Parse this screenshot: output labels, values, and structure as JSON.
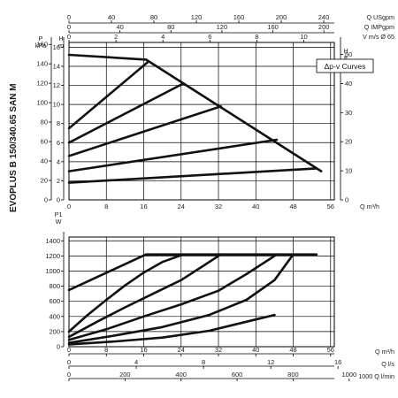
{
  "model_label": "EVOPLUS B 150/340.65 SAN M",
  "legend": "Δp-v Curves",
  "top_axes": [
    {
      "unit": "Q USgpm",
      "min": 0,
      "max": 250,
      "ticks": [
        "0",
        "40",
        "80",
        "120",
        "160",
        "200",
        "240"
      ],
      "tick_values": [
        0,
        40,
        80,
        120,
        160,
        200,
        240
      ]
    },
    {
      "unit": "Q IMPgpm",
      "min": 0,
      "max": 208.2,
      "ticks": [
        "0",
        "40",
        "80",
        "120",
        "160",
        "200"
      ],
      "tick_values": [
        0,
        40,
        80,
        120,
        160,
        200
      ]
    },
    {
      "unit": "V m/s Ø 65",
      "min": 0,
      "max": 11.3,
      "ticks": [
        "0",
        "2",
        "4",
        "6",
        "8",
        "10"
      ],
      "tick_values": [
        0,
        2,
        4,
        6,
        8,
        10
      ]
    }
  ],
  "bottom_axes": [
    {
      "unit": "Q m³/h",
      "min": 0,
      "max": 56.8,
      "ticks": [
        "0",
        "8",
        "16",
        "24",
        "32",
        "40",
        "48",
        "56"
      ],
      "tick_values": [
        0,
        8,
        16,
        24,
        32,
        40,
        48,
        56
      ]
    },
    {
      "unit": "Q l/s",
      "min": 0,
      "max": 15.78,
      "ticks": [
        "0",
        "4",
        "8",
        "12",
        "16"
      ],
      "tick_values": [
        0,
        4,
        8,
        12,
        16
      ]
    },
    {
      "unit": "1000 Q l/min",
      "min": 0,
      "max": 0.947,
      "ticks": [
        "0",
        "200",
        "400",
        "600",
        "800",
        "1000"
      ],
      "tick_values": [
        0,
        0.2,
        0.4,
        0.6,
        0.8,
        1.0
      ]
    }
  ],
  "chart_data": [
    {
      "type": "line",
      "title": "",
      "x_axis": {
        "label": "Q m³/h",
        "range": [
          0,
          56.8
        ],
        "ticks": [
          "0",
          "8",
          "16",
          "24",
          "32",
          "40",
          "48",
          "56"
        ],
        "tick_values": [
          0,
          8,
          16,
          24,
          32,
          40,
          48,
          56
        ]
      },
      "left_axes": [
        {
          "label": "P kPa",
          "range": [
            0,
            162
          ],
          "ticks": [
            "0",
            "20",
            "40",
            "60",
            "80",
            "100",
            "120",
            "140",
            "160"
          ],
          "tick_values": [
            0,
            20,
            40,
            60,
            80,
            100,
            120,
            140,
            160
          ]
        },
        {
          "label": "H m",
          "range": [
            0,
            16.5
          ],
          "ticks": [
            "0",
            "2",
            "4",
            "6",
            "8",
            "10",
            "12",
            "14",
            "16"
          ],
          "tick_values": [
            0,
            2,
            4,
            6,
            8,
            10,
            12,
            14,
            16
          ]
        }
      ],
      "right_axis": {
        "label": "H ft",
        "range": [
          0,
          54.1
        ],
        "ticks": [
          "0",
          "10",
          "20",
          "30",
          "40",
          "50"
        ],
        "tick_values": [
          0,
          10,
          20,
          30,
          40,
          50
        ]
      },
      "ylim": [
        0,
        16.5
      ],
      "grid": true,
      "legend_position": "top-right",
      "series": [
        {
          "x": [
            0,
            16.5,
            54
          ],
          "y": [
            15.2,
            14.7,
            3.0
          ]
        },
        {
          "x": [
            0,
            17
          ],
          "y": [
            7.5,
            14.5
          ]
        },
        {
          "x": [
            0,
            24.5
          ],
          "y": [
            6.0,
            12.2
          ]
        },
        {
          "x": [
            0,
            32.5
          ],
          "y": [
            4.6,
            9.8
          ]
        },
        {
          "x": [
            0,
            44.5
          ],
          "y": [
            3.0,
            6.3
          ]
        },
        {
          "x": [
            0,
            53
          ],
          "y": [
            1.8,
            3.3
          ]
        }
      ]
    },
    {
      "type": "line",
      "title": "",
      "x_axis": {
        "label": "Q m³/h",
        "range": [
          0,
          56.8
        ],
        "ticks": [
          "0",
          "8",
          "16",
          "24",
          "32",
          "40",
          "48",
          "56"
        ],
        "tick_values": [
          0,
          8,
          16,
          24,
          32,
          40,
          48,
          56
        ]
      },
      "y_axis": {
        "label": "P1 W",
        "range": [
          0,
          1450
        ],
        "ticks": [
          "0",
          "200",
          "400",
          "600",
          "800",
          "1000",
          "1200",
          "1400"
        ],
        "tick_values": [
          0,
          200,
          400,
          600,
          800,
          1000,
          1200,
          1400
        ]
      },
      "ylim": [
        0,
        1450
      ],
      "grid": true,
      "series": [
        {
          "x": [
            0,
            16.5,
            53
          ],
          "y": [
            750,
            1220,
            1220
          ]
        },
        {
          "x": [
            0,
            4,
            8,
            12,
            16,
            20,
            24.5
          ],
          "y": [
            200,
            420,
            620,
            810,
            980,
            1120,
            1220
          ]
        },
        {
          "x": [
            0,
            6,
            12,
            18,
            24,
            28,
            32.5
          ],
          "y": [
            130,
            330,
            520,
            700,
            880,
            1040,
            1220
          ]
        },
        {
          "x": [
            0,
            8,
            16,
            24,
            32,
            38,
            44.5
          ],
          "y": [
            90,
            230,
            400,
            560,
            740,
            960,
            1220
          ]
        },
        {
          "x": [
            0,
            10,
            20,
            30,
            38,
            44,
            48
          ],
          "y": [
            50,
            150,
            260,
            420,
            620,
            880,
            1220
          ]
        },
        {
          "x": [
            0,
            10,
            20,
            30,
            36,
            40,
            44
          ],
          "y": [
            30,
            70,
            120,
            210,
            300,
            360,
            420
          ]
        }
      ]
    }
  ]
}
